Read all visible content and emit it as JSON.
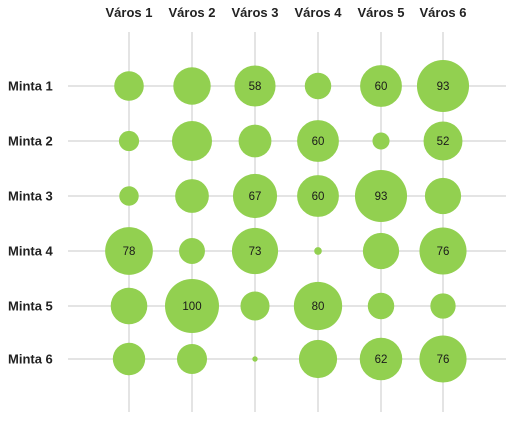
{
  "chart_data": {
    "type": "bubble",
    "title": "",
    "columns": [
      "Város 1",
      "Város 2",
      "Város 3",
      "Város 4",
      "Város 5",
      "Város 6"
    ],
    "rows": [
      "Minta 1",
      "Minta 2",
      "Minta 3",
      "Minta 4",
      "Minta 5",
      "Minta 6"
    ],
    "values": [
      [
        30,
        48,
        58,
        24,
        60,
        93
      ],
      [
        14,
        55,
        37,
        60,
        10,
        52
      ],
      [
        13,
        39,
        67,
        60,
        93,
        45
      ],
      [
        78,
        23,
        73,
        2,
        45,
        76
      ],
      [
        46,
        100,
        29,
        80,
        24,
        22
      ],
      [
        36,
        31,
        1,
        50,
        62,
        76
      ]
    ],
    "labeled": [
      [
        false,
        false,
        true,
        false,
        true,
        true
      ],
      [
        false,
        false,
        false,
        true,
        false,
        true
      ],
      [
        false,
        false,
        true,
        true,
        true,
        false
      ],
      [
        true,
        false,
        true,
        false,
        false,
        true
      ],
      [
        false,
        true,
        false,
        true,
        false,
        false
      ],
      [
        false,
        false,
        false,
        false,
        true,
        true
      ]
    ],
    "max_value": 100,
    "grid": true,
    "colors": {
      "bubble": "#92d050",
      "grid": "#c8c8c8",
      "text": "#222222"
    }
  }
}
